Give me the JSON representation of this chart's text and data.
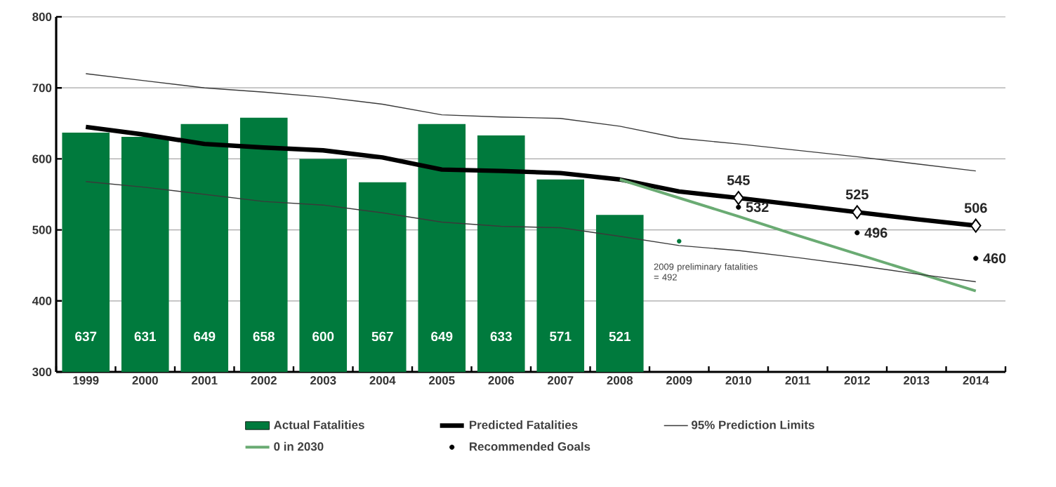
{
  "chart_data": {
    "type": "bar",
    "categories": [
      "1999",
      "2000",
      "2001",
      "2002",
      "2003",
      "2004",
      "2005",
      "2006",
      "2007",
      "2008",
      "2009",
      "2010",
      "2011",
      "2012",
      "2013",
      "2014"
    ],
    "series": [
      {
        "name": "Actual Fatalities",
        "color": "#007a3d",
        "values": [
          637,
          631,
          649,
          658,
          600,
          567,
          649,
          633,
          571,
          521,
          null,
          null,
          null,
          null,
          null,
          null
        ],
        "value_labels": [
          "637",
          "631",
          "649",
          "658",
          "600",
          "567",
          "649",
          "633",
          "571",
          "521",
          null,
          null,
          null,
          null,
          null,
          null
        ]
      },
      {
        "name": "Predicted Fatalities",
        "type": "line",
        "color": "#000000",
        "values": [
          645,
          634,
          621,
          616,
          612,
          602,
          585,
          583,
          580,
          571,
          554,
          545,
          535,
          525,
          515,
          506
        ]
      },
      {
        "name": "95% Prediction Limits",
        "type": "line",
        "color": "#3a3a3a",
        "values": [
          720,
          710,
          700,
          694,
          687,
          677,
          662,
          659,
          657,
          646,
          629,
          621,
          612,
          603,
          593,
          583
        ]
      },
      {
        "name": "0 in 2030",
        "type": "line",
        "color": "#6aab73",
        "values": [
          null,
          null,
          null,
          null,
          null,
          null,
          null,
          null,
          null,
          571,
          545,
          519,
          492,
          466,
          440,
          414
        ]
      },
      {
        "name": "Recommended Goals",
        "type": "scatter",
        "color": "#000000",
        "marker": "circle",
        "values": [
          null,
          null,
          null,
          null,
          null,
          null,
          null,
          null,
          null,
          null,
          null,
          532,
          null,
          496,
          null,
          460
        ],
        "value_labels": [
          null,
          null,
          null,
          null,
          null,
          null,
          null,
          null,
          null,
          null,
          null,
          "532",
          null,
          "496",
          null,
          "460"
        ]
      },
      {
        "type": "line",
        "color": "#3a3a3a",
        "values": [
          568,
          560,
          550,
          540,
          535,
          524,
          511,
          505,
          503,
          491,
          478,
          471,
          461,
          450,
          438,
          427
        ]
      },
      {
        "type": "scatter",
        "color": "#000000",
        "marker": "diamond",
        "values": [
          null,
          null,
          null,
          null,
          null,
          null,
          null,
          null,
          null,
          null,
          null,
          545,
          null,
          525,
          null,
          506
        ],
        "value_labels": [
          null,
          null,
          null,
          null,
          null,
          null,
          null,
          null,
          null,
          null,
          null,
          "545",
          null,
          "525",
          null,
          "506"
        ]
      }
    ],
    "annotations": [
      {
        "text": "2009 preliminary fatalities = 492",
        "x": "2009",
        "y": 484
      }
    ],
    "ylim": [
      300,
      800
    ],
    "yticks": [
      300,
      400,
      500,
      600,
      700,
      800
    ],
    "grid": "y",
    "legend": "bottom"
  }
}
